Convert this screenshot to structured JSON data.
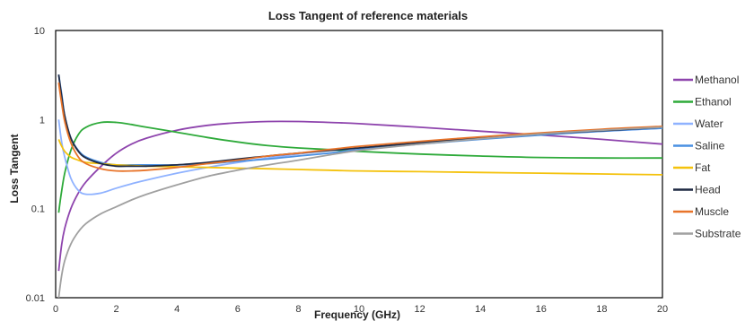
{
  "chart_data": {
    "type": "line",
    "title": "Loss Tangent of reference materials",
    "xlabel": "Frequency (GHz)",
    "ylabel": "Loss Tangent",
    "xlim": [
      0,
      20
    ],
    "ylim": [
      0.01,
      10
    ],
    "yscale": "log",
    "grid": false,
    "legend_position": "right",
    "x_ticks": [
      "0",
      "2",
      "4",
      "6",
      "8",
      "10",
      "12",
      "14",
      "16",
      "18",
      "20"
    ],
    "y_ticks": [
      "0.01",
      "0.1",
      "1",
      "10"
    ],
    "x": [
      0.1,
      0.2,
      0.3,
      0.5,
      0.75,
      1,
      1.5,
      2,
      2.5,
      3,
      4,
      5,
      6,
      7,
      8,
      9,
      10,
      12,
      14,
      16,
      18,
      20
    ],
    "series": [
      {
        "name": "Methanol",
        "color": "#8e44ad",
        "values": [
          0.02,
          0.04,
          0.06,
          0.1,
          0.15,
          0.2,
          0.3,
          0.42,
          0.53,
          0.62,
          0.76,
          0.86,
          0.92,
          0.95,
          0.95,
          0.93,
          0.9,
          0.82,
          0.74,
          0.67,
          0.6,
          0.53
        ]
      },
      {
        "name": "Ethanol",
        "color": "#2eaa3a",
        "values": [
          0.09,
          0.16,
          0.25,
          0.45,
          0.68,
          0.82,
          0.93,
          0.93,
          0.88,
          0.82,
          0.72,
          0.63,
          0.56,
          0.51,
          0.48,
          0.46,
          0.44,
          0.41,
          0.39,
          0.375,
          0.37,
          0.37
        ]
      },
      {
        "name": "Water",
        "color": "#8fb2ff",
        "values": [
          1.0,
          0.55,
          0.38,
          0.22,
          0.16,
          0.145,
          0.15,
          0.17,
          0.19,
          0.21,
          0.25,
          0.29,
          0.33,
          0.37,
          0.41,
          0.45,
          0.48,
          0.55,
          0.62,
          0.68,
          0.74,
          0.8
        ]
      },
      {
        "name": "Saline",
        "color": "#4a90e2",
        "values": [
          3.2,
          1.9,
          1.1,
          0.62,
          0.45,
          0.38,
          0.33,
          0.31,
          0.31,
          0.31,
          0.31,
          0.32,
          0.34,
          0.36,
          0.39,
          0.42,
          0.46,
          0.53,
          0.6,
          0.67,
          0.74,
          0.8
        ]
      },
      {
        "name": "Fat",
        "color": "#f4c20d",
        "values": [
          0.6,
          0.5,
          0.44,
          0.38,
          0.35,
          0.33,
          0.32,
          0.31,
          0.305,
          0.3,
          0.295,
          0.29,
          0.285,
          0.28,
          0.275,
          0.27,
          0.265,
          0.26,
          0.255,
          0.25,
          0.245,
          0.24
        ]
      },
      {
        "name": "Head",
        "color": "#1f2a44",
        "values": [
          3.2,
          1.8,
          1.1,
          0.62,
          0.44,
          0.37,
          0.32,
          0.3,
          0.3,
          0.3,
          0.31,
          0.33,
          0.36,
          0.39,
          0.42,
          0.45,
          0.48,
          0.55,
          0.62,
          0.69,
          0.75,
          0.82
        ]
      },
      {
        "name": "Muscle",
        "color": "#e8742a",
        "values": [
          2.6,
          1.5,
          0.95,
          0.55,
          0.38,
          0.32,
          0.28,
          0.265,
          0.265,
          0.27,
          0.29,
          0.32,
          0.35,
          0.39,
          0.42,
          0.46,
          0.5,
          0.57,
          0.64,
          0.71,
          0.78,
          0.84
        ]
      },
      {
        "name": "Substrate",
        "color": "#a0a0a0",
        "values": [
          0.01,
          0.018,
          0.026,
          0.04,
          0.055,
          0.068,
          0.088,
          0.105,
          0.125,
          0.145,
          0.185,
          0.23,
          0.27,
          0.31,
          0.35,
          0.4,
          0.45,
          0.53,
          0.61,
          0.69,
          0.76,
          0.82
        ]
      }
    ]
  }
}
